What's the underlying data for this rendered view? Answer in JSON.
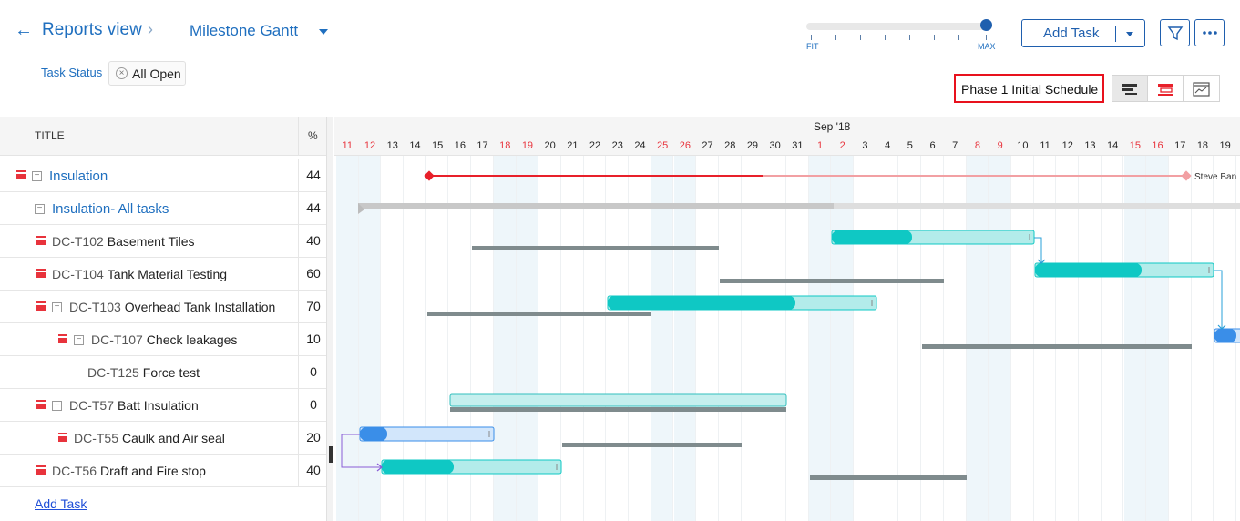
{
  "header": {
    "back_icon": "arrow-left-icon",
    "breadcrumb": "Reports view",
    "view_name": "Milestone Gantt",
    "filter_label": "Task Status",
    "filter_chip": "All Open",
    "zoom_min": "FIT",
    "zoom_max": "MAX",
    "zoom_level": 1.0,
    "add_task_label": "Add Task",
    "baseline_label": "Phase 1 Initial Schedule"
  },
  "table": {
    "col_title": "TITLE",
    "col_pct": "%",
    "rows": [
      {
        "id": "",
        "name": "Insulation",
        "pct": "44"
      },
      {
        "id": "",
        "name": "Insulation- All tasks",
        "pct": "44"
      },
      {
        "id": "DC-T102",
        "name": "Basement Tiles",
        "pct": "40"
      },
      {
        "id": "DC-T104",
        "name": "Tank Material Testing",
        "pct": "60"
      },
      {
        "id": "DC-T103",
        "name": "Overhead Tank Installation",
        "pct": "70"
      },
      {
        "id": "DC-T107",
        "name": "Check leakages",
        "pct": "10"
      },
      {
        "id": "DC-T125",
        "name": "Force test",
        "pct": "0"
      },
      {
        "id": "DC-T57",
        "name": "Batt Insulation",
        "pct": "0"
      },
      {
        "id": "DC-T55",
        "name": "Caulk and Air seal",
        "pct": "20"
      },
      {
        "id": "DC-T56",
        "name": "Draft and Fire stop",
        "pct": "40"
      }
    ],
    "add_task_link": "Add Task"
  },
  "gantt": {
    "month_label": "Sep '18",
    "days": [
      "11",
      "12",
      "13",
      "14",
      "15",
      "16",
      "17",
      "18",
      "19",
      "20",
      "21",
      "22",
      "23",
      "24",
      "25",
      "26",
      "27",
      "28",
      "29",
      "30",
      "31",
      "1",
      "2",
      "3",
      "4",
      "5",
      "6",
      "7",
      "8",
      "9",
      "10",
      "11",
      "12",
      "13",
      "14",
      "15",
      "16",
      "17",
      "18",
      "19"
    ],
    "weekend_flags": [
      1,
      1,
      0,
      0,
      0,
      0,
      0,
      1,
      1,
      0,
      0,
      0,
      0,
      0,
      1,
      1,
      0,
      0,
      0,
      0,
      0,
      1,
      1,
      0,
      0,
      0,
      0,
      0,
      1,
      1,
      0,
      0,
      0,
      0,
      0,
      1,
      1,
      0,
      0,
      0
    ],
    "milestone_owner": "Steve Ban",
    "colors": {
      "milestone": "#e8202a",
      "task": "#0fc8c4",
      "task_light": "#b3ecea",
      "baseline": "#7f8b8d",
      "subtask": "#3a8ee8",
      "weekend": "#eef6fa"
    }
  }
}
